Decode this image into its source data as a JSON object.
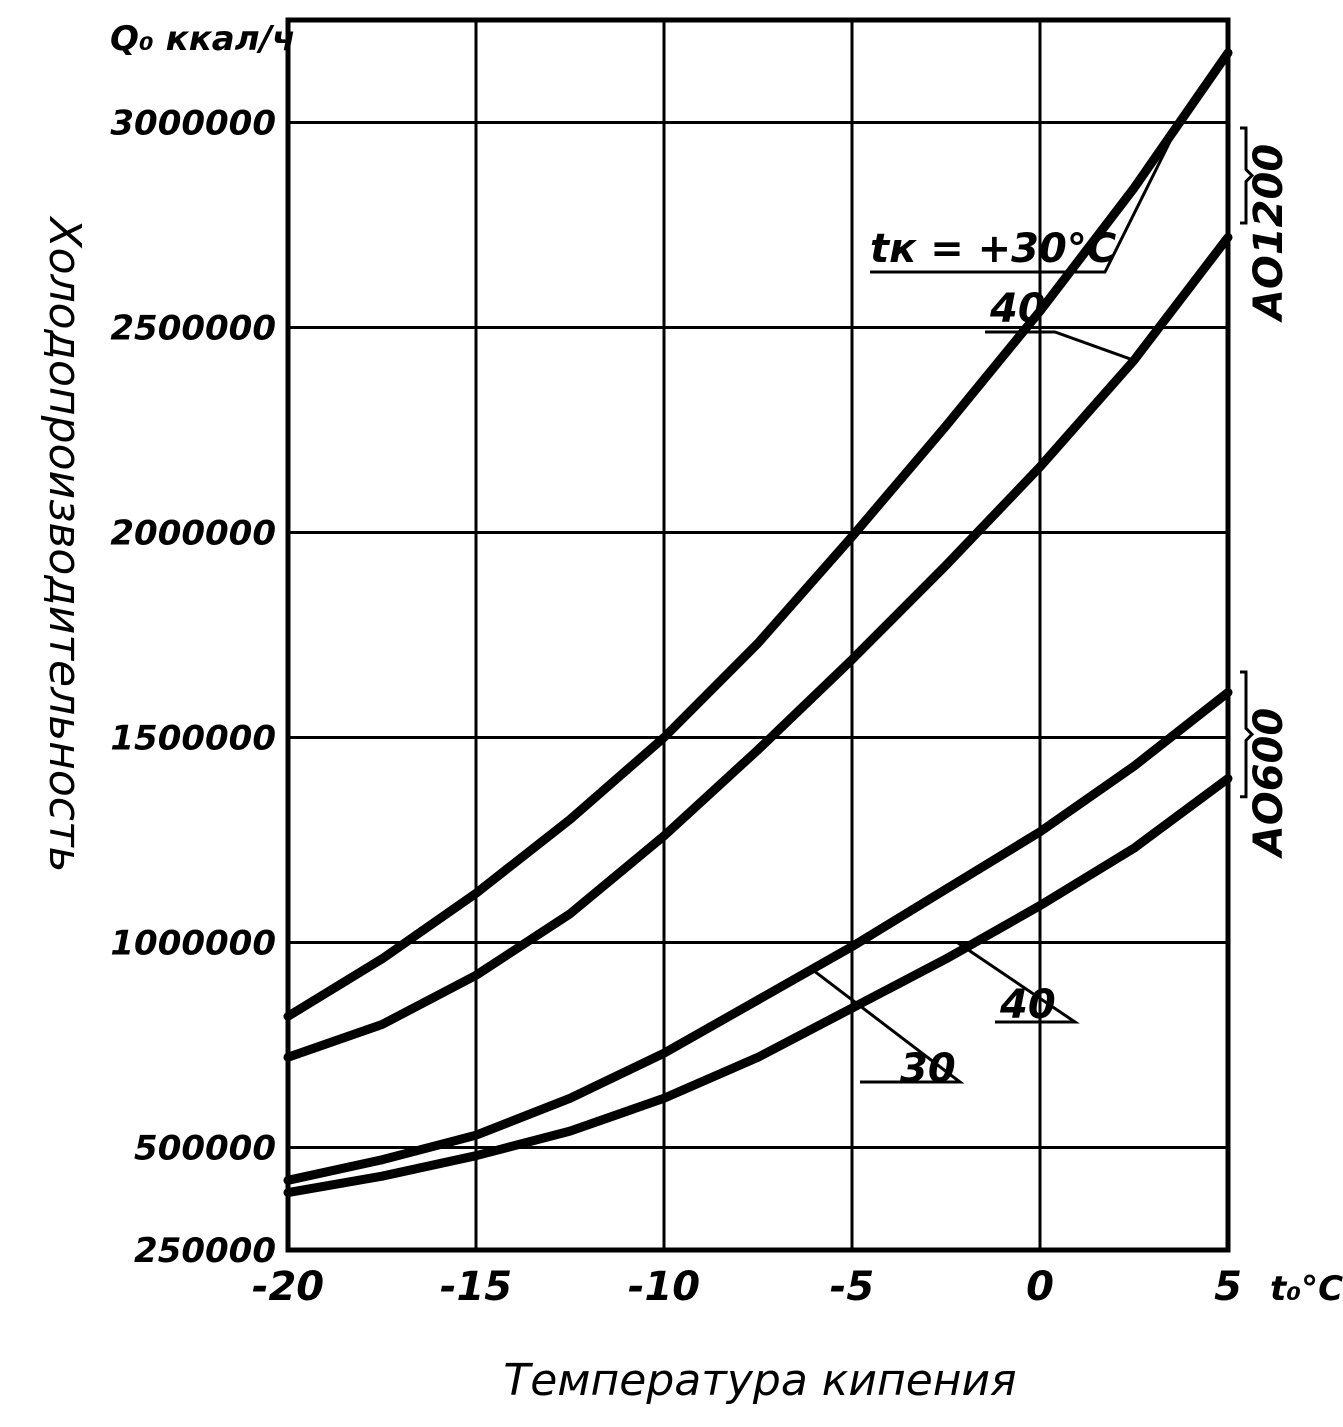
{
  "chart_data": {
    "type": "line",
    "title": "",
    "ylabel": "Холодопроизводительность",
    "y_unit": "Q₀ ккал/ч",
    "xlabel": "Температура кипения",
    "x_unit": "t₀°C",
    "xlim": [
      -20,
      5
    ],
    "ylim": [
      250000,
      3250000
    ],
    "x_ticks": [
      -20,
      -15,
      -10,
      -5,
      0,
      5
    ],
    "x_tick_labels": [
      "-20",
      "-15",
      "-10",
      "-5",
      "0",
      "5"
    ],
    "y_ticks": [
      250000,
      500000,
      1000000,
      1500000,
      2000000,
      2500000,
      3000000
    ],
    "y_tick_labels": [
      "250000",
      "500000",
      "1000000",
      "1500000",
      "2000000",
      "2500000",
      "3000000"
    ],
    "grid": true,
    "groups": [
      {
        "label": "АО1200",
        "series": [
          0,
          1
        ]
      },
      {
        "label": "АО600",
        "series": [
          2,
          3
        ]
      }
    ],
    "series": [
      {
        "name": "tк = +30°C",
        "x": [
          -20,
          -17.5,
          -15,
          -12.5,
          -10,
          -7.5,
          -5,
          -2.5,
          0,
          2.5,
          5
        ],
        "values": [
          820000,
          960000,
          1120000,
          1300000,
          1500000,
          1730000,
          1990000,
          2260000,
          2540000,
          2840000,
          3170000
        ]
      },
      {
        "name": "40",
        "x": [
          -20,
          -17.5,
          -15,
          -12.5,
          -10,
          -7.5,
          -5,
          -2.5,
          0,
          2.5,
          5
        ],
        "values": [
          720000,
          800000,
          920000,
          1070000,
          1260000,
          1470000,
          1690000,
          1920000,
          2160000,
          2420000,
          2720000
        ]
      },
      {
        "name": "30",
        "x": [
          -20,
          -17.5,
          -15,
          -12.5,
          -10,
          -7.5,
          -5,
          -2.5,
          0,
          2.5,
          5
        ],
        "values": [
          420000,
          470000,
          530000,
          620000,
          730000,
          860000,
          990000,
          1130000,
          1270000,
          1430000,
          1610000
        ]
      },
      {
        "name": "40",
        "x": [
          -20,
          -17.5,
          -15,
          -12.5,
          -10,
          -7.5,
          -5,
          -2.5,
          0,
          2.5,
          5
        ],
        "values": [
          390000,
          430000,
          480000,
          540000,
          620000,
          720000,
          840000,
          960000,
          1090000,
          1230000,
          1400000
        ]
      }
    ]
  }
}
